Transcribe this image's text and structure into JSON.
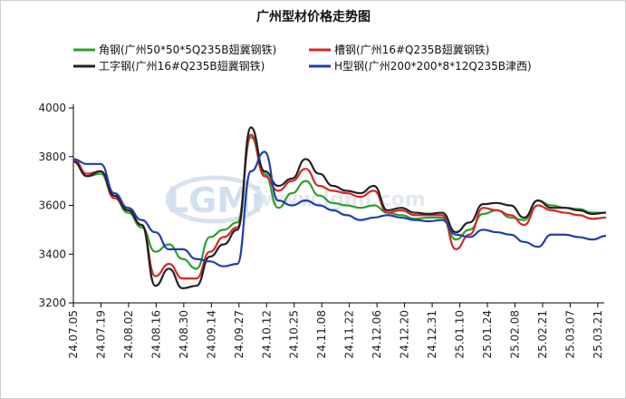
{
  "chart_data": {
    "type": "line",
    "title": "广州型材价格走势图",
    "xlabel": "",
    "ylabel": "",
    "ylim": [
      3200,
      4000
    ],
    "yticks": [
      3200,
      3400,
      3600,
      3800,
      4000
    ],
    "legend_position": "top",
    "grid": false,
    "watermark": "LGMI www.lgmi.com",
    "x_tick_labels": [
      "24.07.05",
      "24.07.19",
      "24.08.02",
      "24.08.16",
      "24.08.30",
      "24.09.14",
      "24.09.27",
      "24.10.12",
      "24.10.25",
      "24.11.08",
      "24.11.22",
      "24.12.06",
      "24.12.20",
      "24.12.31",
      "25.01.10",
      "25.01.24",
      "25.02.08",
      "25.02.21",
      "25.03.07",
      "25.03.21"
    ],
    "x": [
      "24.07.05",
      "24.07.12",
      "24.07.19",
      "24.07.26",
      "24.08.02",
      "24.08.09",
      "24.08.16",
      "24.08.23",
      "24.08.30",
      "24.09.06",
      "24.09.14",
      "24.09.20",
      "24.09.27",
      "24.10.04",
      "24.10.12",
      "24.10.18",
      "24.10.25",
      "24.11.01",
      "24.11.08",
      "24.11.15",
      "24.11.22",
      "24.11.29",
      "24.12.06",
      "24.12.13",
      "24.12.20",
      "24.12.27",
      "24.12.31",
      "25.01.03",
      "25.01.10",
      "25.01.17",
      "25.01.24",
      "25.01.31",
      "25.02.08",
      "25.02.14",
      "25.02.21",
      "25.02.28",
      "25.03.07",
      "25.03.14",
      "25.03.21",
      "25.03.28"
    ],
    "series": [
      {
        "name": "角钢(广州50*50*5Q235B翅冀钢铁)",
        "color": "#2ca02c",
        "values": [
          3790,
          3720,
          3730,
          3630,
          3570,
          3510,
          3410,
          3440,
          3380,
          3340,
          3470,
          3500,
          3530,
          3880,
          3730,
          3590,
          3650,
          3700,
          3640,
          3610,
          3600,
          3590,
          3600,
          3570,
          3560,
          3545,
          3550,
          3550,
          3460,
          3500,
          3565,
          3580,
          3550,
          3540,
          3620,
          3600,
          3590,
          3585,
          3570,
          3570
        ]
      },
      {
        "name": "槽钢(广州16#Q235B翅冀钢铁)",
        "color": "#d62728",
        "values": [
          3790,
          3730,
          3740,
          3630,
          3580,
          3520,
          3310,
          3360,
          3300,
          3300,
          3410,
          3470,
          3510,
          3890,
          3720,
          3660,
          3700,
          3750,
          3680,
          3660,
          3650,
          3635,
          3660,
          3570,
          3580,
          3560,
          3560,
          3560,
          3420,
          3480,
          3590,
          3580,
          3560,
          3520,
          3600,
          3580,
          3570,
          3560,
          3545,
          3550
        ]
      },
      {
        "name": "工字钢(广州16#Q235B翅冀钢铁)",
        "color": "#222222",
        "values": [
          3780,
          3720,
          3740,
          3640,
          3580,
          3520,
          3270,
          3340,
          3260,
          3270,
          3390,
          3440,
          3500,
          3920,
          3740,
          3680,
          3710,
          3790,
          3730,
          3680,
          3660,
          3650,
          3680,
          3580,
          3590,
          3570,
          3565,
          3570,
          3490,
          3530,
          3605,
          3610,
          3600,
          3550,
          3620,
          3590,
          3590,
          3580,
          3565,
          3570
        ]
      },
      {
        "name": "H型钢(广州200*200*8*12Q235B津西)",
        "color": "#1f3fb0",
        "values": [
          3790,
          3770,
          3770,
          3650,
          3590,
          3540,
          3490,
          3420,
          3420,
          3380,
          3370,
          3350,
          3360,
          3740,
          3820,
          3620,
          3600,
          3620,
          3600,
          3580,
          3560,
          3540,
          3550,
          3560,
          3550,
          3540,
          3535,
          3540,
          3480,
          3470,
          3500,
          3490,
          3480,
          3450,
          3430,
          3480,
          3480,
          3470,
          3460,
          3475
        ]
      }
    ]
  }
}
